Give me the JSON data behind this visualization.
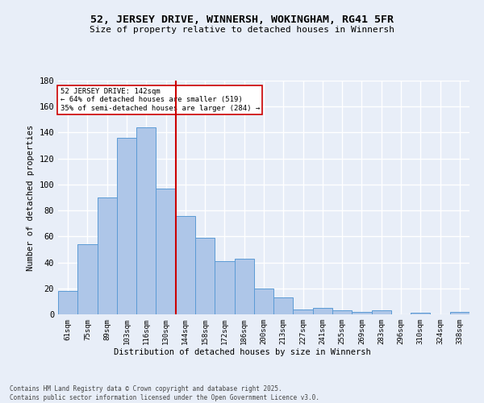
{
  "title": "52, JERSEY DRIVE, WINNERSH, WOKINGHAM, RG41 5FR",
  "subtitle": "Size of property relative to detached houses in Winnersh",
  "xlabel": "Distribution of detached houses by size in Winnersh",
  "ylabel": "Number of detached properties",
  "footer": "Contains HM Land Registry data © Crown copyright and database right 2025.\nContains public sector information licensed under the Open Government Licence v3.0.",
  "bins": [
    "61sqm",
    "75sqm",
    "89sqm",
    "103sqm",
    "116sqm",
    "130sqm",
    "144sqm",
    "158sqm",
    "172sqm",
    "186sqm",
    "200sqm",
    "213sqm",
    "227sqm",
    "241sqm",
    "255sqm",
    "269sqm",
    "283sqm",
    "296sqm",
    "310sqm",
    "324sqm",
    "338sqm"
  ],
  "values": [
    18,
    54,
    90,
    136,
    144,
    97,
    76,
    59,
    41,
    43,
    20,
    13,
    4,
    5,
    3,
    2,
    3,
    0,
    1,
    0,
    2
  ],
  "bar_color": "#aec6e8",
  "bar_edge_color": "#5b9bd5",
  "vline_x_index": 6,
  "vline_color": "#cc0000",
  "annotation_text": "52 JERSEY DRIVE: 142sqm\n← 64% of detached houses are smaller (519)\n35% of semi-detached houses are larger (284) →",
  "annotation_box_color": "#ffffff",
  "annotation_box_edge": "#cc0000",
  "bg_color": "#e8eef8",
  "plot_bg_color": "#e8eef8",
  "grid_color": "#ffffff",
  "ylim": [
    0,
    180
  ],
  "yticks": [
    0,
    20,
    40,
    60,
    80,
    100,
    120,
    140,
    160,
    180
  ]
}
